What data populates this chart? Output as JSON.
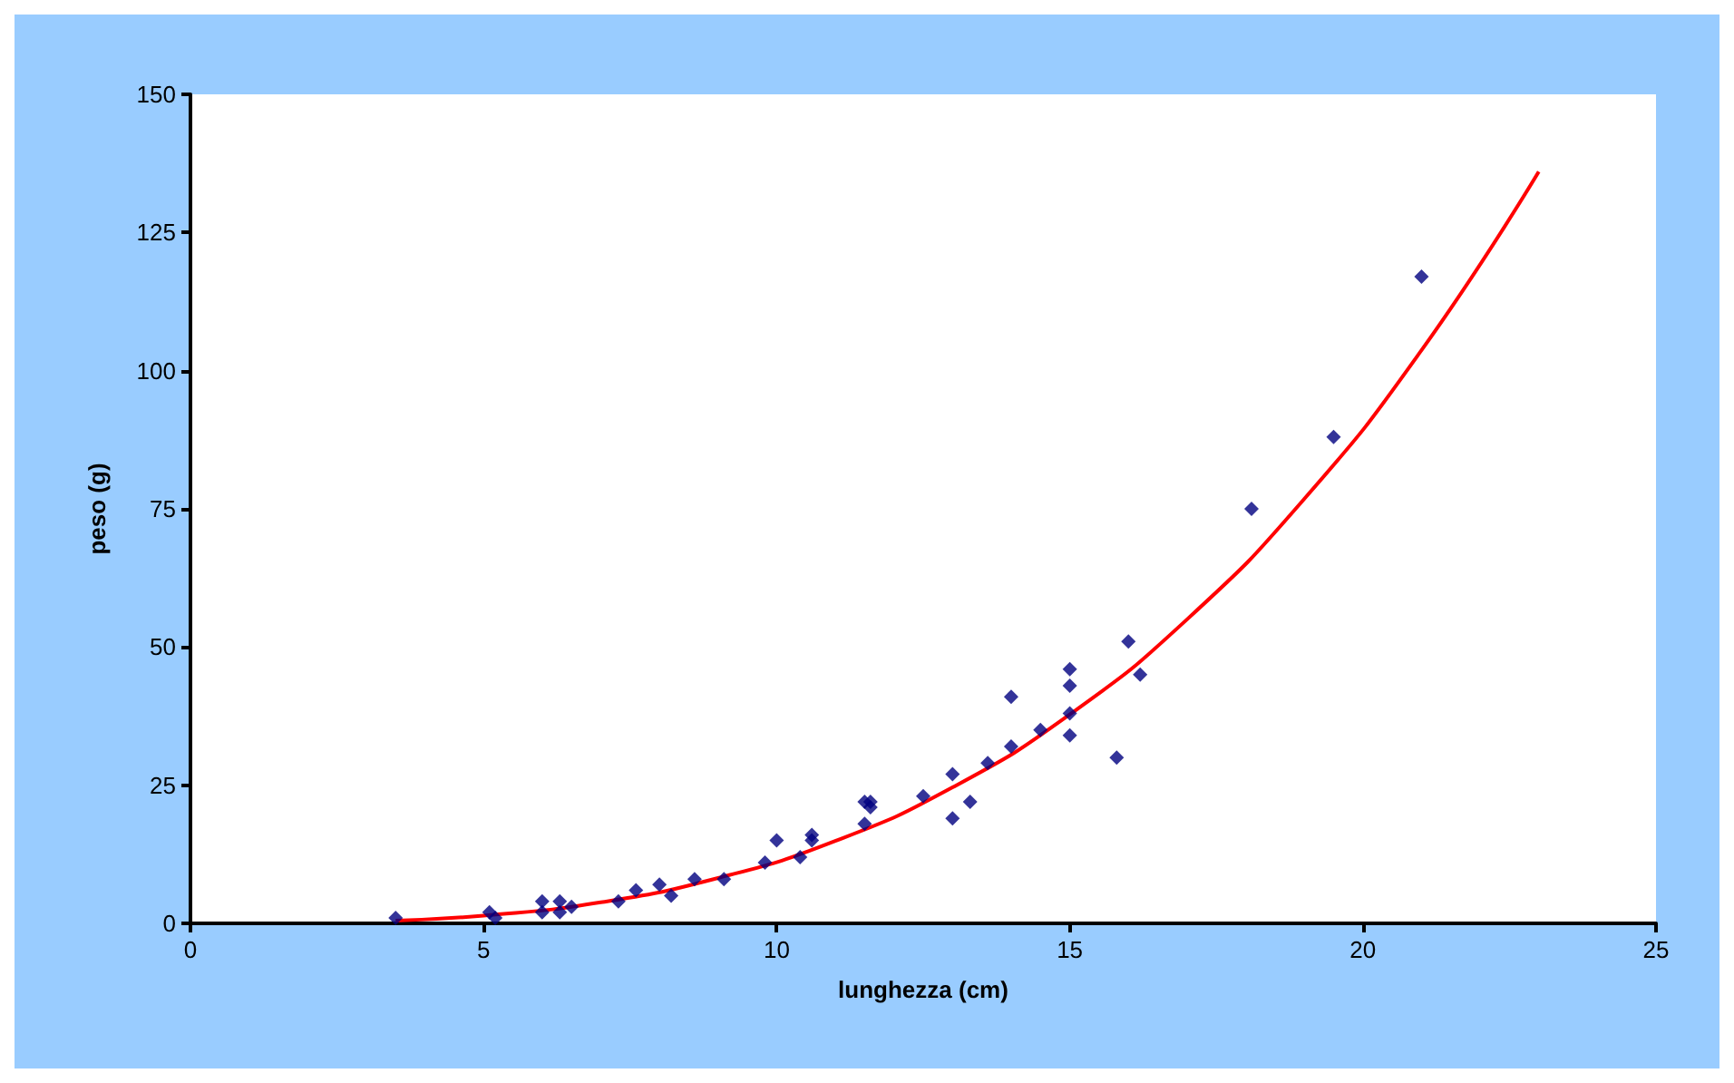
{
  "chart_data": {
    "type": "scatter",
    "xlabel": "lunghezza (cm)",
    "ylabel": "peso (g)",
    "xlim": [
      0,
      25
    ],
    "xticks": [
      0,
      5,
      10,
      15,
      20,
      25
    ],
    "ylim": [
      0,
      150
    ],
    "yticks": [
      0,
      25,
      50,
      75,
      100,
      125,
      150
    ],
    "grid": false,
    "marker": "diamond",
    "series": [
      {
        "color": "#000080",
        "x": [
          3.5,
          5.1,
          5.2,
          6,
          6,
          6.3,
          6.3,
          6.5,
          7.3,
          7.6,
          8,
          8.2,
          8.6,
          9.1,
          9.8,
          10,
          10.4,
          10.6,
          10.6,
          11.5,
          11.5,
          11.6,
          11.6,
          12.5,
          13,
          13,
          13.3,
          13.6,
          14,
          14,
          14.5,
          15,
          15,
          15,
          15,
          15.8,
          16,
          16.2,
          18.1,
          19.5,
          21
        ],
        "values": [
          1,
          2,
          1,
          4,
          2,
          2,
          4,
          3,
          4,
          6,
          7,
          5,
          8,
          8,
          11,
          15,
          12,
          16,
          15,
          18,
          22,
          22,
          21,
          23,
          27,
          19,
          22,
          29,
          32,
          41,
          35,
          46,
          43,
          38,
          34,
          30,
          51,
          45,
          75,
          88,
          117
        ]
      },
      {
        "type": "line",
        "color": "#ff0000",
        "marker": "none",
        "x": [
          3.5,
          5,
          7,
          9,
          11,
          13,
          15,
          17,
          19,
          21,
          23
        ],
        "values": [
          0.5,
          1.4,
          3.8,
          8.2,
          14.9,
          24.6,
          37.8,
          55,
          76.8,
          103.7,
          136
        ]
      }
    ]
  }
}
